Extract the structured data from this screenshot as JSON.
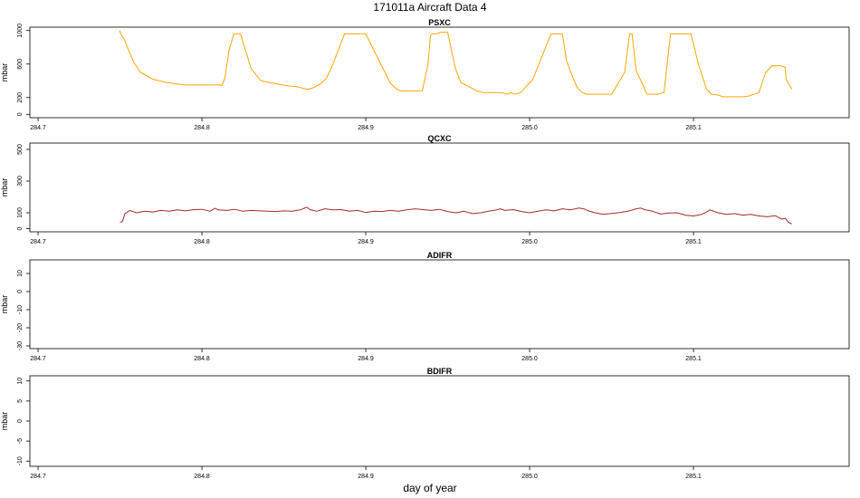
{
  "figure": {
    "title": "171011a    Aircraft Data 4",
    "xlabel": "day of year"
  },
  "chart_data": [
    {
      "type": "line",
      "title": "PSXC",
      "ylabel": "mbar",
      "color": "#FFA500",
      "xlim": [
        284.695,
        285.195
      ],
      "ylim": [
        -40,
        1040
      ],
      "x_ticks": [
        284.7,
        284.8,
        284.9,
        285.0,
        285.1
      ],
      "x_tick_labels": [
        "284.7",
        "284.8",
        "284.9",
        "285.0",
        "285.1"
      ],
      "y_ticks": [
        0,
        200,
        600,
        1000
      ],
      "y_tick_labels": [
        "0",
        "200",
        "600",
        "1000"
      ],
      "series": [
        {
          "x": [
            284.7497,
            284.7509,
            284.7525,
            284.7554,
            284.7585,
            284.7625,
            284.77,
            284.7785,
            284.7895,
            284.7997,
            284.804,
            284.8075,
            284.8095,
            284.81,
            284.8103,
            284.8108,
            284.812,
            284.814,
            284.8165,
            284.8195,
            284.8235,
            284.83,
            284.836,
            284.852,
            284.858,
            284.86,
            284.862,
            284.864,
            284.865,
            284.867,
            284.8687,
            284.87,
            284.872,
            284.876,
            284.88,
            284.887,
            284.9,
            284.915,
            284.919,
            284.9215,
            284.9245,
            284.927,
            284.93,
            284.9345,
            284.938,
            284.9395,
            284.9405,
            284.943,
            284.946,
            284.95,
            284.9545,
            284.958,
            284.968,
            284.9715,
            284.976,
            284.979,
            284.9815,
            284.983,
            284.9865,
            284.9885,
            284.991,
            284.9945,
            285.002,
            285.013,
            285.02,
            285.0225,
            285.026,
            285.029,
            285.032,
            285.035,
            285.038,
            285.044,
            285.05,
            285.058,
            285.061,
            285.0625,
            285.065,
            285.069,
            285.071,
            285.072,
            285.074,
            285.078,
            285.082,
            285.086,
            285.0985,
            285.103,
            285.106,
            285.108,
            285.111,
            285.115,
            285.118,
            285.121,
            285.125,
            285.131,
            285.134,
            285.14,
            285.144,
            285.148,
            285.153,
            285.156,
            285.1565,
            285.16
          ],
          "y": [
            1000,
            940,
            900,
            760,
            620,
            500,
            420,
            380,
            350,
            350,
            350,
            350,
            352,
            354,
            352,
            350,
            340,
            430,
            760,
            960,
            960,
            550,
            400,
            340,
            330,
            320,
            310,
            300,
            300,
            310,
            325,
            340,
            360,
            430,
            600,
            960,
            960,
            370,
            300,
            280,
            280,
            280,
            280,
            280,
            600,
            940,
            960,
            960,
            980,
            980,
            560,
            380,
            280,
            260,
            260,
            260,
            260,
            260,
            240,
            260,
            240,
            260,
            420,
            960,
            960,
            640,
            460,
            320,
            260,
            240,
            240,
            240,
            240,
            500,
            960,
            960,
            520,
            360,
            260,
            240,
            240,
            240,
            260,
            960,
            960,
            600,
            420,
            300,
            240,
            230,
            210,
            210,
            210,
            210,
            220,
            260,
            500,
            580,
            580,
            560,
            420,
            300
          ]
        }
      ]
    },
    {
      "type": "line",
      "title": "QCXC",
      "ylabel": "mbar",
      "color": "#A52A2A",
      "xlim": [
        284.695,
        285.195
      ],
      "ylim": [
        -20,
        540
      ],
      "x_ticks": [
        284.7,
        284.8,
        284.9,
        285.0,
        285.1
      ],
      "x_tick_labels": [
        "284.7",
        "284.8",
        "284.9",
        "285.0",
        "285.1"
      ],
      "y_ticks": [
        0,
        100,
        300,
        500
      ],
      "y_tick_labels": [
        "0",
        "100",
        "300",
        "500"
      ],
      "series": [
        {
          "x": [
            284.75,
            284.7515,
            284.753,
            284.756,
            284.76,
            284.765,
            284.77,
            284.775,
            284.78,
            284.785,
            284.79,
            284.795,
            284.8,
            284.805,
            284.808,
            284.81,
            284.815,
            284.82,
            284.825,
            284.83,
            284.835,
            284.84,
            284.845,
            284.85,
            284.855,
            284.86,
            284.864,
            284.866,
            284.87,
            284.875,
            284.88,
            284.885,
            284.89,
            284.895,
            284.9,
            284.905,
            284.91,
            284.915,
            284.92,
            284.925,
            284.93,
            284.935,
            284.94,
            284.945,
            284.95,
            284.955,
            284.96,
            284.965,
            284.97,
            284.975,
            284.98,
            284.982,
            284.985,
            284.99,
            284.995,
            285.0,
            285.005,
            285.01,
            285.015,
            285.02,
            285.025,
            285.03,
            285.033,
            285.036,
            285.04,
            285.045,
            285.05,
            285.055,
            285.06,
            285.065,
            285.068,
            285.07,
            285.075,
            285.08,
            285.085,
            285.09,
            285.095,
            285.1,
            285.105,
            285.108,
            285.11,
            285.115,
            285.12,
            285.125,
            285.13,
            285.135,
            285.14,
            285.145,
            285.15,
            285.152,
            285.154,
            285.156,
            285.158,
            285.16
          ],
          "y": [
            40,
            45,
            95,
            115,
            100,
            110,
            105,
            115,
            110,
            118,
            112,
            120,
            122,
            110,
            128,
            118,
            115,
            122,
            110,
            115,
            112,
            110,
            108,
            112,
            110,
            118,
            135,
            120,
            110,
            125,
            118,
            120,
            110,
            115,
            102,
            110,
            108,
            115,
            110,
            118,
            125,
            120,
            115,
            122,
            108,
            100,
            110,
            95,
            100,
            110,
            118,
            125,
            115,
            120,
            108,
            100,
            110,
            118,
            112,
            125,
            118,
            130,
            125,
            112,
            100,
            90,
            96,
            102,
            110,
            125,
            130,
            120,
            110,
            92,
            98,
            100,
            85,
            80,
            90,
            105,
            118,
            100,
            90,
            95,
            85,
            90,
            80,
            75,
            82,
            70,
            60,
            65,
            40,
            30
          ]
        }
      ]
    },
    {
      "type": "line",
      "title": "ADIFR",
      "ylabel": "mbar",
      "color": "#000000",
      "xlim": [
        284.695,
        285.195
      ],
      "ylim": [
        -31.5,
        17.5
      ],
      "x_ticks": [
        284.7,
        284.8,
        284.9,
        285.0,
        285.1
      ],
      "x_tick_labels": [
        "284.7",
        "284.8",
        "284.9",
        "285.0",
        "285.1"
      ],
      "y_ticks": [
        -30,
        -20,
        -10,
        0,
        10
      ],
      "y_tick_labels": [
        "-30",
        "-20",
        "-10",
        "0",
        "10"
      ],
      "series": []
    },
    {
      "type": "line",
      "title": "BDIFR",
      "ylabel": "mbar",
      "color": "#000000",
      "xlim": [
        284.695,
        285.195
      ],
      "ylim": [
        -11.3,
        11.3
      ],
      "x_ticks": [
        284.7,
        284.8,
        284.9,
        285.0,
        285.1
      ],
      "x_tick_labels": [
        "284.7",
        "284.8",
        "284.9",
        "285.0",
        "285.1"
      ],
      "y_ticks": [
        -10,
        -5,
        0,
        5,
        10
      ],
      "y_tick_labels": [
        "-10",
        "-5",
        "0",
        "5",
        "10"
      ],
      "series": []
    }
  ]
}
